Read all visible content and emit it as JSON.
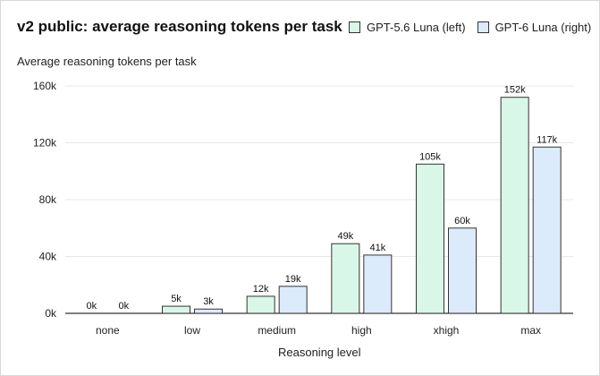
{
  "chart_data": {
    "type": "bar",
    "title": "v2 public: average reasoning tokens per task",
    "ylabel": "Average reasoning tokens per task",
    "xlabel": "Reasoning level",
    "categories": [
      "none",
      "low",
      "medium",
      "high",
      "xhigh",
      "max"
    ],
    "series": [
      {
        "name": "GPT-5.6 Luna (left)",
        "color": "#d9f7e8",
        "values": [
          0,
          5000,
          12000,
          49000,
          105000,
          152000
        ],
        "labels": [
          "0k",
          "5k",
          "12k",
          "49k",
          "105k",
          "152k"
        ]
      },
      {
        "name": "GPT-6 Luna (right)",
        "color": "#dcebfb",
        "values": [
          0,
          3000,
          19000,
          41000,
          60000,
          117000
        ],
        "labels": [
          "0k",
          "3k",
          "19k",
          "41k",
          "60k",
          "117k"
        ]
      }
    ],
    "ylim": [
      0,
      160000
    ],
    "yticks": [
      0,
      40000,
      80000,
      120000,
      160000
    ],
    "ytick_labels": [
      "0k",
      "40k",
      "80k",
      "120k",
      "160k"
    ],
    "grid": true,
    "legend_position": "top-right"
  }
}
